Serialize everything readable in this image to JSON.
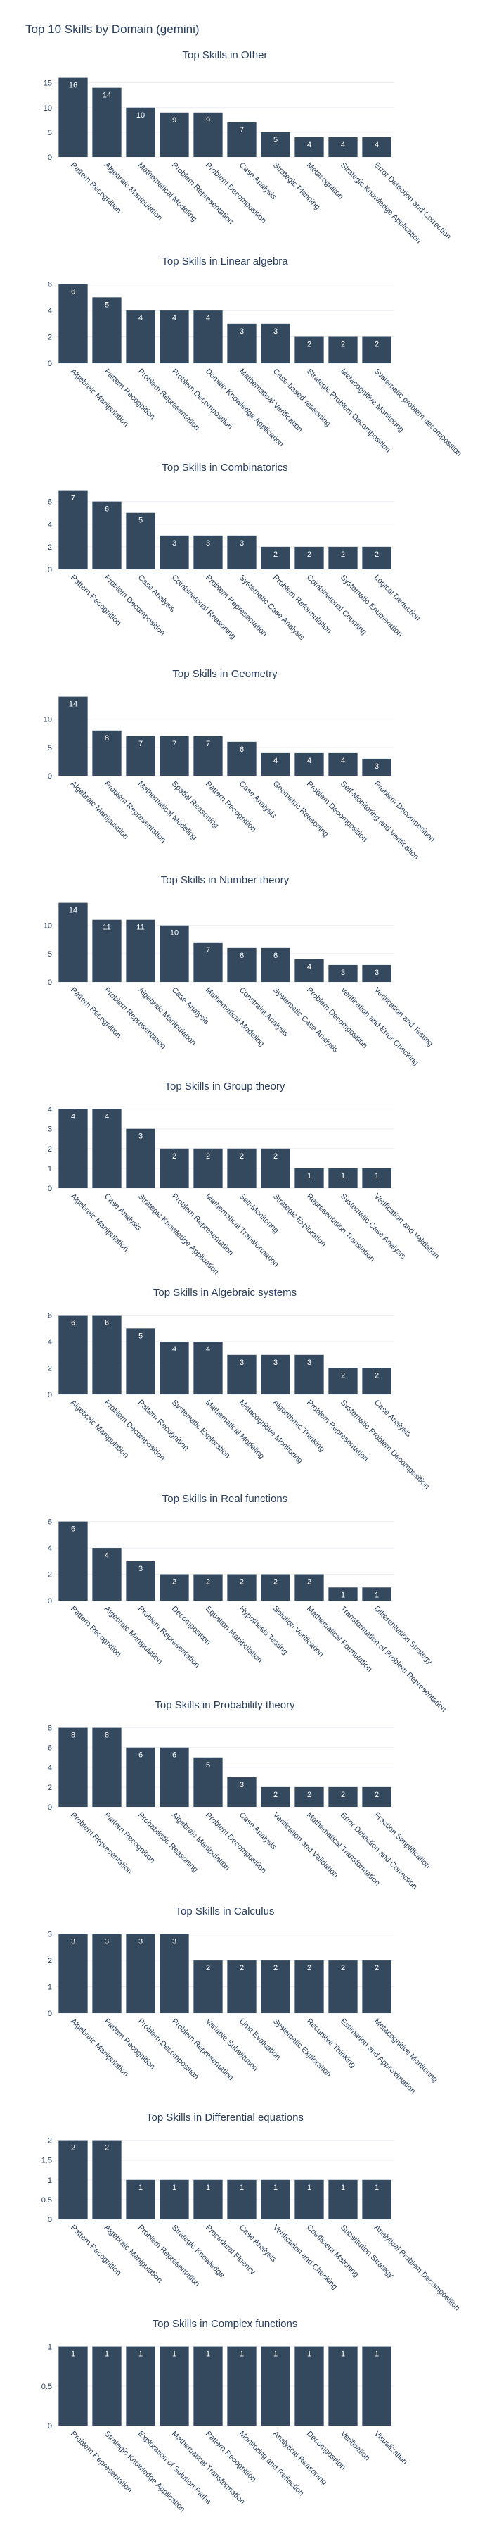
{
  "page": {
    "title": "Top 10 Skills by Domain (gemini)",
    "bar_color": "#34495e",
    "text_color": "#2a3f5f",
    "grid_color": "#ebeef3",
    "label_color": "#ffffff"
  },
  "chart_data": [
    {
      "type": "bar",
      "title": "Top Skills in Other",
      "categories": [
        "Pattern Recognition",
        "Algebraic Manipulation",
        "Mathematical Modeling",
        "Problem Representation",
        "Problem Decomposition",
        "Case Analysis",
        "Strategic Planning",
        "Metacognition",
        "Strategic Knowledge Application",
        "Error Detection and Correction"
      ],
      "values": [
        16,
        14,
        10,
        9,
        9,
        7,
        5,
        4,
        4,
        4
      ],
      "yticks": [
        0,
        5,
        10,
        15
      ],
      "ylim": [
        0,
        16.8
      ],
      "grid": true
    },
    {
      "type": "bar",
      "title": "Top Skills in Linear algebra",
      "categories": [
        "Algebraic Manipulation",
        "Pattern Recognition",
        "Problem Representation",
        "Problem Decomposition",
        "Domain Knowledge Application",
        "Mathematical Verification",
        "Case-based reasoning",
        "Strategic Problem Decomposition",
        "Metacognitive Monitoring",
        "Systematic problem decomposition"
      ],
      "values": [
        6,
        5,
        4,
        4,
        4,
        3,
        3,
        2,
        2,
        2
      ],
      "yticks": [
        0,
        2,
        4,
        6
      ],
      "ylim": [
        0,
        6.3
      ],
      "grid": true
    },
    {
      "type": "bar",
      "title": "Top Skills in Combinatorics",
      "categories": [
        "Pattern Recognition",
        "Problem Decomposition",
        "Case Analysis",
        "Combinatorial Reasoning",
        "Problem Representation",
        "Systematic Case Analysis",
        "Problem Reformulation",
        "Combinatorial Counting",
        "Systematic Enumeration",
        "Logical Deduction"
      ],
      "values": [
        7,
        6,
        5,
        3,
        3,
        3,
        2,
        2,
        2,
        2
      ],
      "yticks": [
        0,
        2,
        4,
        6
      ],
      "ylim": [
        0,
        7.35
      ],
      "grid": true
    },
    {
      "type": "bar",
      "title": "Top Skills in Geometry",
      "categories": [
        "Algebraic Manipulation",
        "Problem Representation",
        "Mathematical Modeling",
        "Spatial Reasoning",
        "Pattern Recognition",
        "Case Analysis",
        "Geometric Reasoning",
        "Problem Decomposition",
        "Self-Monitoring and Verification",
        "Problem Decomposition"
      ],
      "values": [
        14,
        8,
        7,
        7,
        7,
        6,
        4,
        4,
        4,
        3
      ],
      "yticks": [
        0,
        5,
        10
      ],
      "ylim": [
        0,
        14.7
      ],
      "grid": true
    },
    {
      "type": "bar",
      "title": "Top Skills in Number theory",
      "categories": [
        "Pattern Recognition",
        "Problem Representation",
        "Algebraic Manipulation",
        "Case Analysis",
        "Mathematical Modeling",
        "Constraint Analysis",
        "Systematic Case Analysis",
        "Problem Decomposition",
        "Verification and Error Checking",
        "Verification and Testing"
      ],
      "values": [
        14,
        11,
        11,
        10,
        7,
        6,
        6,
        4,
        3,
        3
      ],
      "yticks": [
        0,
        5,
        10
      ],
      "ylim": [
        0,
        14.7
      ],
      "grid": true
    },
    {
      "type": "bar",
      "title": "Top Skills in Group theory",
      "categories": [
        "Algebraic Manipulation",
        "Case Analysis",
        "Strategic Knowledge Application",
        "Problem Representation",
        "Mathematical Transformation",
        "Self-Monitoring",
        "Strategic Exploration",
        "Representation Translation",
        "Systematic Case Analysis",
        "Verification and Validation"
      ],
      "values": [
        4,
        4,
        3,
        2,
        2,
        2,
        2,
        1,
        1,
        1
      ],
      "yticks": [
        0,
        1,
        2,
        3,
        4
      ],
      "ylim": [
        0,
        4.2
      ],
      "grid": true
    },
    {
      "type": "bar",
      "title": "Top Skills in Algebraic systems",
      "categories": [
        "Algebraic Manipulation",
        "Problem Decomposition",
        "Pattern Recognition",
        "Systematic Exploration",
        "Mathematical Modeling",
        "Metacognitive Monitoring",
        "Algorithmic Thinking",
        "Problem Representation",
        "Systematic Problem Decomposition",
        "Case Analysis"
      ],
      "values": [
        6,
        6,
        5,
        4,
        4,
        3,
        3,
        3,
        2,
        2
      ],
      "yticks": [
        0,
        2,
        4,
        6
      ],
      "ylim": [
        0,
        6.3
      ],
      "grid": true
    },
    {
      "type": "bar",
      "title": "Top Skills in Real functions",
      "categories": [
        "Pattern Recognition",
        "Algebraic Manipulation",
        "Problem Representation",
        "Decomposition",
        "Equation Manipulation",
        "Hypothesis Testing",
        "Solution Verification",
        "Mathematical Formulation",
        "Transformation of Problem Representation",
        "Differentiation Strategy"
      ],
      "values": [
        6,
        4,
        3,
        2,
        2,
        2,
        2,
        2,
        1,
        1
      ],
      "yticks": [
        0,
        2,
        4,
        6
      ],
      "ylim": [
        0,
        6.3
      ],
      "grid": true
    },
    {
      "type": "bar",
      "title": "Top Skills in Probability theory",
      "categories": [
        "Problem Representation",
        "Pattern Recognition",
        "Probabilistic Reasoning",
        "Algebraic Manipulation",
        "Problem Decomposition",
        "Case Analysis",
        "Verification and Validation",
        "Mathematical Transformation",
        "Error Detection and Correction",
        "Fraction Simplification"
      ],
      "values": [
        8,
        8,
        6,
        6,
        5,
        3,
        2,
        2,
        2,
        2
      ],
      "yticks": [
        0,
        2,
        4,
        6,
        8
      ],
      "ylim": [
        0,
        8.4
      ],
      "grid": true
    },
    {
      "type": "bar",
      "title": "Top Skills in Calculus",
      "categories": [
        "Algebraic Manipulation",
        "Pattern Recognition",
        "Problem Decomposition",
        "Problem Representation",
        "Variable Substitution",
        "Limit Evaluation",
        "Systematic Exploration",
        "Recursive Thinking",
        "Estimation and Approximation",
        "Metacognitive Monitoring"
      ],
      "values": [
        3,
        3,
        3,
        3,
        2,
        2,
        2,
        2,
        2,
        2
      ],
      "yticks": [
        0,
        1,
        2,
        3
      ],
      "ylim": [
        0,
        3.15
      ],
      "grid": true
    },
    {
      "type": "bar",
      "title": "Top Skills in Differential equations",
      "categories": [
        "Pattern Recognition",
        "Algebraic Manipulation",
        "Problem Representation",
        "Strategic Knowledge",
        "Procedural Fluency",
        "Case Analysis",
        "Verification and Checking",
        "Coefficient Matching",
        "Substitution Strategy",
        "Analytical Problem Decomposition"
      ],
      "values": [
        2,
        2,
        1,
        1,
        1,
        1,
        1,
        1,
        1,
        1
      ],
      "yticks": [
        0,
        0.5,
        1,
        1.5,
        2
      ],
      "ylim": [
        0,
        2.1
      ],
      "grid": true
    },
    {
      "type": "bar",
      "title": "Top Skills in Complex functions",
      "categories": [
        "Problem Representation",
        "Strategic Knowledge Application",
        "Exploration of Solution Paths",
        "Mathematical Transformation",
        "Pattern Recognition",
        "Monitoring and Reflection",
        "Analytical Reasoning",
        "Decomposition",
        "Verification",
        "Visualization"
      ],
      "values": [
        1,
        1,
        1,
        1,
        1,
        1,
        1,
        1,
        1,
        1
      ],
      "yticks": [
        0,
        0.5,
        1
      ],
      "ylim": [
        0,
        1.05
      ],
      "grid": true
    }
  ]
}
